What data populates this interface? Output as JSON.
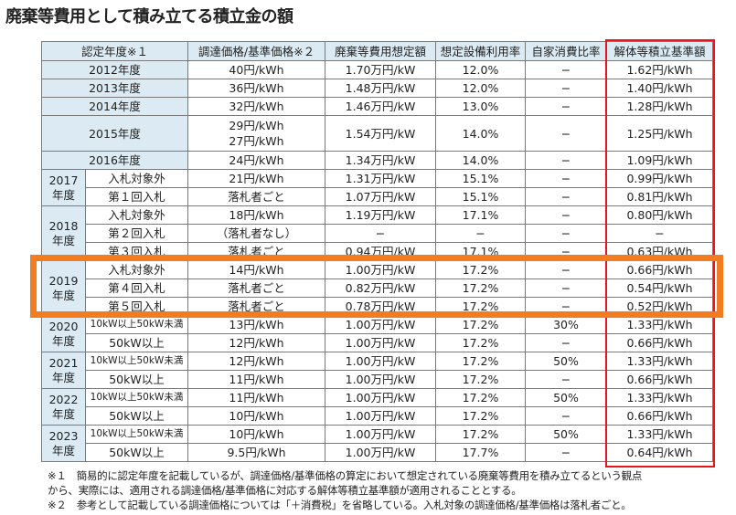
{
  "title": "廃棄等費用として積み立てる積立金の額",
  "headers": [
    "認定年度※１",
    "調達価格/基準価格※２",
    "廃棄等費用想定額",
    "想定設備利用率",
    "自家消費比率",
    "解体等積立基準額"
  ],
  "rows": [
    {
      "group": "2012年度",
      "sub": null,
      "price": "40円/kWh",
      "cost": "1.70万円/kW",
      "util": "12.0%",
      "self": "−",
      "base": "1.62円/kWh"
    },
    {
      "group": "2013年度",
      "sub": null,
      "price": "36円/kWh",
      "cost": "1.48万円/kW",
      "util": "12.0%",
      "self": "−",
      "base": "1.40円/kWh"
    },
    {
      "group": "2014年度",
      "sub": null,
      "price": "32円/kWh",
      "cost": "1.46万円/kW",
      "util": "13.0%",
      "self": "−",
      "base": "1.28円/kWh"
    },
    {
      "group": "2015年度",
      "sub": null,
      "price": "29円/kWh\n27円/kWh",
      "cost": "1.54万円/kW",
      "util": "14.0%",
      "self": "−",
      "base": "1.25円/kWh"
    },
    {
      "group": "2016年度",
      "sub": null,
      "price": "24円/kWh",
      "cost": "1.34万円/kW",
      "util": "14.0%",
      "self": "−",
      "base": "1.09円/kWh"
    },
    {
      "group": "2017\n年度",
      "span": 2,
      "sub": "入札対象外",
      "price": "21円/kWh",
      "cost": "1.31万円/kW",
      "util": "15.1%",
      "self": "−",
      "base": "0.99円/kWh"
    },
    {
      "sub": "第１回入札",
      "price": "落札者ごと",
      "cost": "1.07万円/kW",
      "util": "15.1%",
      "self": "−",
      "base": "0.81円/kWh"
    },
    {
      "group": "2018\n年度",
      "span": 3,
      "sub": "入札対象外",
      "price": "18円/kWh",
      "cost": "1.19万円/kW",
      "util": "17.1%",
      "self": "−",
      "base": "0.80円/kWh"
    },
    {
      "sub": "第２回入札",
      "price": "（落札者なし）",
      "cost": "−",
      "util": "−",
      "self": "−",
      "base": "−"
    },
    {
      "sub": "第３回入札",
      "price": "落札者ごと",
      "cost": "0.94万円/kW",
      "util": "17.1%",
      "self": "−",
      "base": "0.63円/kWh"
    },
    {
      "group": "2019\n年度",
      "span": 3,
      "sub": "入札対象外",
      "price": "14円/kWh",
      "cost": "1.00万円/kW",
      "util": "17.2%",
      "self": "−",
      "base": "0.66円/kWh"
    },
    {
      "sub": "第４回入札",
      "price": "落札者ごと",
      "cost": "0.82万円/kW",
      "util": "17.2%",
      "self": "−",
      "base": "0.54円/kWh"
    },
    {
      "sub": "第５回入札",
      "price": "落札者ごと",
      "cost": "0.78万円/kW",
      "util": "17.2%",
      "self": "−",
      "base": "0.52円/kWh"
    },
    {
      "group": "2020\n年度",
      "span": 2,
      "sub": "10kW以上50kW未満",
      "price": "13円/kWh",
      "cost": "1.00万円/kW",
      "util": "17.2%",
      "self": "30%",
      "base": "1.33円/kWh"
    },
    {
      "sub": "50kW以上",
      "price": "12円/kWh",
      "cost": "1.00万円/kW",
      "util": "17.2%",
      "self": "−",
      "base": "0.66円/kWh"
    },
    {
      "group": "2021\n年度",
      "span": 2,
      "sub": "10kW以上50kW未満",
      "price": "12円/kWh",
      "cost": "1.00万円/kW",
      "util": "17.2%",
      "self": "50%",
      "base": "1.33円/kWh"
    },
    {
      "sub": "50kW以上",
      "price": "11円/kWh",
      "cost": "1.00万円/kW",
      "util": "17.2%",
      "self": "−",
      "base": "0.66円/kWh"
    },
    {
      "group": "2022\n年度",
      "span": 2,
      "sub": "10kW以上50kW未満",
      "price": "11円/kWh",
      "cost": "1.00万円/kW",
      "util": "17.2%",
      "self": "50%",
      "base": "1.33円/kWh"
    },
    {
      "sub": "50kW以上",
      "price": "10円/kWh",
      "cost": "1.00万円/kW",
      "util": "17.2%",
      "self": "−",
      "base": "0.66円/kWh"
    },
    {
      "group": "2023\n年度",
      "span": 2,
      "sub": "10kW以上50kW未満",
      "price": "10円/kWh",
      "cost": "1.00万円/kW",
      "util": "17.2%",
      "self": "50%",
      "base": "1.33円/kWh"
    },
    {
      "sub": "50kW以上",
      "price": "9.5円/kWh",
      "cost": "1.00万円/kW",
      "util": "17.7%",
      "self": "−",
      "base": "0.64円/kWh"
    }
  ],
  "notes": [
    "※１　簡易的に認定年度を記載しているが、調達価格/基準価格の算定において想定されている廃棄等費用を積み立てるという観点",
    "から、実際には、適用される調達価格/基準価格に対応する解体等積立基準額が適用されることとする。",
    "※２　参考として記載している調達価格については「＋消費税」を省略している。入札対象の調達価格/基準価格は落札者ごと。"
  ],
  "colors": {
    "header_bg": "#dcebf3",
    "highlight_red": "#e8151b",
    "highlight_orange": "#f47c20"
  }
}
